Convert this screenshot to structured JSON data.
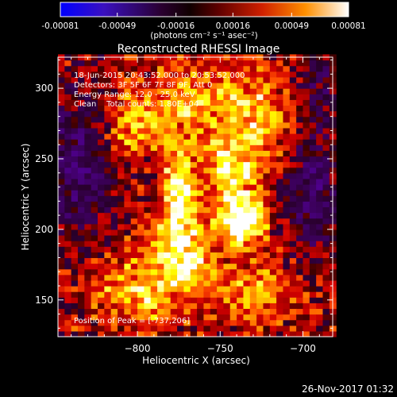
{
  "chart_data": {
    "type": "heatmap",
    "title": "Reconstructed RHESSI Image",
    "xlabel": "Heliocentric X (arcsec)",
    "ylabel": "Heliocentric Y (arcsec)",
    "xlim": [
      -848,
      -682
    ],
    "ylim": [
      124,
      322
    ],
    "xticks": [
      -800,
      -750,
      -700
    ],
    "yticks": [
      150,
      200,
      250,
      300
    ],
    "xtick_labels": [
      "−800",
      "−750",
      "−700"
    ],
    "ytick_labels": [
      "150",
      "200",
      "250",
      "300"
    ],
    "colorbar": {
      "range": [
        -0.00081,
        0.00081
      ],
      "ticks": [
        -0.00081,
        -0.00049,
        -0.00016,
        0.00016,
        0.00049,
        0.00081
      ],
      "tick_labels": [
        "-0.00081",
        "-0.00049",
        "-0.00016",
        "0.00016",
        "0.00049",
        "0.00081"
      ],
      "units_label": "(photons cm⁻² s⁻¹ asec⁻²)"
    },
    "info_lines": [
      "18-Jun-2015 20:43:52.000 to 20:53:52.000",
      "Detectors: 3F 5F 6F 7F 8F 9F, Att 0",
      "Energy Range: 12.0 - 25.0 keV",
      "Clean    Total counts: 1.80E+04"
    ],
    "peak_label": "Position of Peak = [-737,206]",
    "peak_position": [
      -737,
      206
    ],
    "sources": [
      {
        "x": -737,
        "y": 206,
        "sx": 10,
        "sy": 12,
        "amp": 1.0
      },
      {
        "x": -775,
        "y": 228,
        "sx": 7,
        "sy": 18,
        "amp": 0.85
      },
      {
        "x": -775,
        "y": 195,
        "sx": 11,
        "sy": 11,
        "amp": 0.6
      },
      {
        "x": -768,
        "y": 175,
        "sx": 9,
        "sy": 8,
        "amp": 0.55
      },
      {
        "x": -745,
        "y": 240,
        "sx": 12,
        "sy": 18,
        "amp": 0.6
      },
      {
        "x": -760,
        "y": 290,
        "sx": 30,
        "sy": 18,
        "amp": 0.45
      },
      {
        "x": -795,
        "y": 160,
        "sx": 22,
        "sy": 18,
        "amp": 0.55
      },
      {
        "x": -800,
        "y": 270,
        "sx": 12,
        "sy": 14,
        "amp": 0.4
      },
      {
        "x": -730,
        "y": 155,
        "sx": 18,
        "sy": 14,
        "amp": 0.4
      },
      {
        "x": -725,
        "y": 270,
        "sx": 14,
        "sy": 22,
        "amp": 0.35
      }
    ],
    "negative_regions": [
      {
        "x": -838,
        "y": 245,
        "sx": 14,
        "sy": 35,
        "amp": 0.55
      },
      {
        "x": -695,
        "y": 230,
        "sx": 12,
        "sy": 30,
        "amp": 0.55
      },
      {
        "x": -690,
        "y": 300,
        "sx": 12,
        "sy": 14,
        "amp": 0.35
      }
    ],
    "colors": {
      "colorbar_stops": [
        "#0000ff",
        "#5a00b0",
        "#1a0010",
        "#500000",
        "#c01800",
        "#ff6000",
        "#ffc040",
        "#ffffff"
      ]
    }
  },
  "footer": {
    "date_stamp": "26-Nov-2017 01:32"
  }
}
